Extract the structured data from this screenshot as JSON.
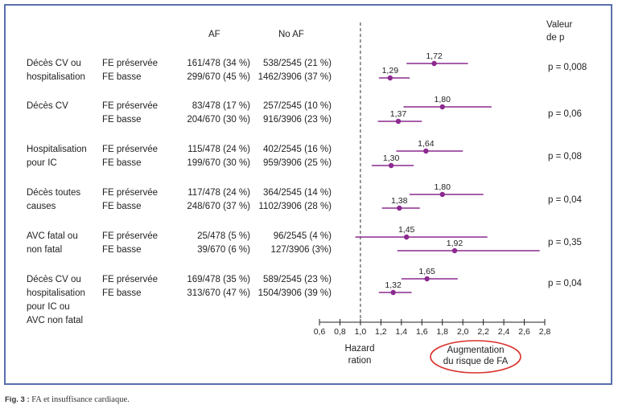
{
  "figure": {
    "caption_label": "Fig. 3 :",
    "caption_text": "FA et insuffisance cardiaque."
  },
  "headers": {
    "af": "AF",
    "no_af": "No AF",
    "p_line1": "Valeur",
    "p_line2": "de p"
  },
  "groups": [
    {
      "outcome": [
        "Décès CV ou",
        "hospitalisation"
      ],
      "p": "p = 0,008",
      "rows": [
        {
          "fe": "FE préservée",
          "af": "161/478 (34 %)",
          "noaf": "538/2545 (21 %)"
        },
        {
          "fe": "FE basse",
          "af": "299/670 (45 %)",
          "noaf": "1462/3906 (37 %)"
        }
      ]
    },
    {
      "outcome": [
        "Décès CV"
      ],
      "p": "p = 0,06",
      "rows": [
        {
          "fe": "FE préservée",
          "af": "83/478 (17 %)",
          "noaf": "257/2545 (10 %)"
        },
        {
          "fe": "FE basse",
          "af": "204/670 (30 %)",
          "noaf": "916/3906 (23 %)"
        }
      ]
    },
    {
      "outcome": [
        "Hospitalisation",
        "pour IC"
      ],
      "p": "p = 0,08",
      "rows": [
        {
          "fe": "FE préservée",
          "af": "115/478 (24 %)",
          "noaf": "402/2545 (16 %)"
        },
        {
          "fe": "FE basse",
          "af": "199/670 (30 %)",
          "noaf": "959/3906 (25 %)"
        }
      ]
    },
    {
      "outcome": [
        "Décès toutes",
        "causes"
      ],
      "p": "p = 0,04",
      "rows": [
        {
          "fe": "FE préservée",
          "af": "117/478 (24 %)",
          "noaf": "364/2545 (14 %)"
        },
        {
          "fe": "FE basse",
          "af": "248/670 (37 %)",
          "noaf": "1102/3906 (28 %)"
        }
      ]
    },
    {
      "outcome": [
        "AVC fatal ou",
        "non fatal"
      ],
      "p": "p = 0,35",
      "rows": [
        {
          "fe": "FE préservée",
          "af": "25/478 (5 %)",
          "noaf": "96/2545 (4 %)"
        },
        {
          "fe": "FE basse",
          "af": "39/670 (6 %)",
          "noaf": "127/3906 (3%)"
        }
      ]
    },
    {
      "outcome": [
        "Décès CV ou",
        "hospitalisation",
        "pour IC ou",
        "AVC non fatal"
      ],
      "p": "p = 0,04",
      "rows": [
        {
          "fe": "FE préservée",
          "af": "169/478 (35 %)",
          "noaf": "589/2545 (23 %)"
        },
        {
          "fe": "FE basse",
          "af": "313/670 (47 %)",
          "noaf": "1504/3906 (39 %)"
        }
      ]
    }
  ],
  "chart_data": {
    "type": "forest",
    "x_axis": {
      "min": 0.6,
      "max": 2.8,
      "ticks": [
        "0,6",
        "0,8",
        "1,0",
        "1,2",
        "1,4",
        "1,6",
        "1,8",
        "2,0",
        "2,2",
        "2,4",
        "2,6",
        "2,8"
      ],
      "label_left": [
        "Hazard",
        "ration"
      ],
      "label_right": [
        "Augmentation",
        "du risque de FA"
      ]
    },
    "reference_line": 1.0,
    "colors": {
      "marker": "#8b2a8f",
      "annotation_ellipse": "#d9302a"
    },
    "series": [
      {
        "group": 0,
        "name": "FE préservée",
        "hr": 1.72,
        "label": "1,72",
        "ci": [
          1.45,
          2.05
        ]
      },
      {
        "group": 0,
        "name": "FE basse",
        "hr": 1.29,
        "label": "1,29",
        "ci": [
          1.18,
          1.48
        ]
      },
      {
        "group": 1,
        "name": "FE préservée",
        "hr": 1.8,
        "label": "1,80",
        "ci": [
          1.42,
          2.28
        ]
      },
      {
        "group": 1,
        "name": "FE basse",
        "hr": 1.37,
        "label": "1,37",
        "ci": [
          1.17,
          1.6
        ]
      },
      {
        "group": 2,
        "name": "FE préservée",
        "hr": 1.64,
        "label": "1,64",
        "ci": [
          1.35,
          2.0
        ]
      },
      {
        "group": 2,
        "name": "FE basse",
        "hr": 1.3,
        "label": "1,30",
        "ci": [
          1.11,
          1.52
        ]
      },
      {
        "group": 3,
        "name": "FE préservée",
        "hr": 1.8,
        "label": "1,80",
        "ci": [
          1.48,
          2.2
        ]
      },
      {
        "group": 3,
        "name": "FE basse",
        "hr": 1.38,
        "label": "1,38",
        "ci": [
          1.21,
          1.58
        ]
      },
      {
        "group": 4,
        "name": "FE préservée",
        "hr": 1.45,
        "label": "1,45",
        "ci": [
          0.95,
          2.24
        ]
      },
      {
        "group": 4,
        "name": "FE basse",
        "hr": 1.92,
        "label": "1,92",
        "ci": [
          1.36,
          2.75
        ]
      },
      {
        "group": 5,
        "name": "FE préservée",
        "hr": 1.65,
        "label": "1,65",
        "ci": [
          1.4,
          1.95
        ]
      },
      {
        "group": 5,
        "name": "FE basse",
        "hr": 1.32,
        "label": "1,32",
        "ci": [
          1.18,
          1.5
        ]
      }
    ]
  }
}
